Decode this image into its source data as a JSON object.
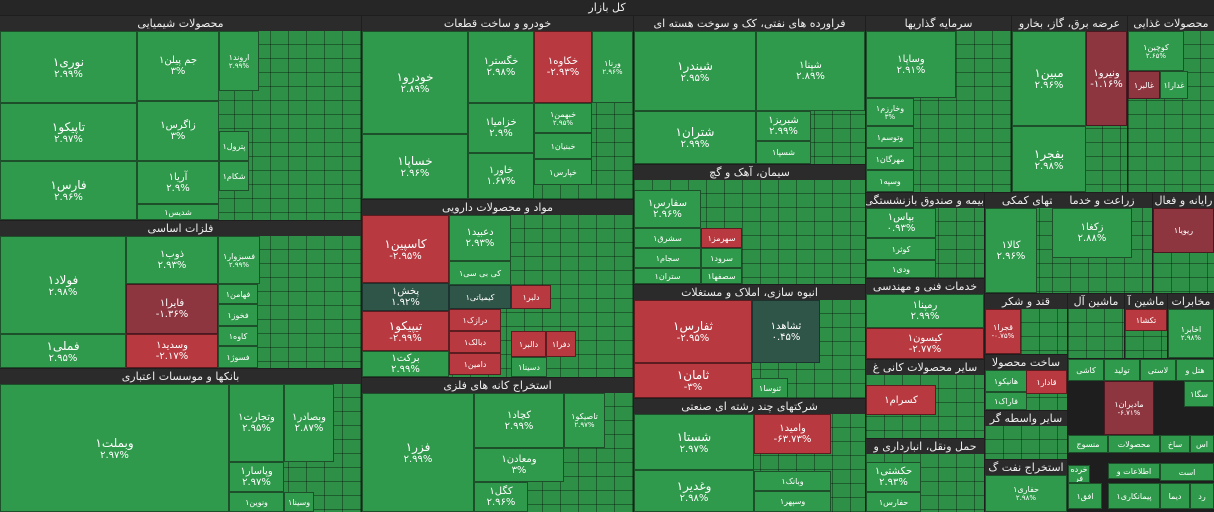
{
  "title": "کل بازار",
  "sectors": {
    "chem": "محصولات شیمیایی",
    "metals": "فلزات اساسی",
    "banks": "بانکها و موسسات اعتباری",
    "auto": "خودرو و ساخت قطعات",
    "pharma": "مواد و محصولات دارویی",
    "mining": "استخراج کانه های فلزی",
    "oil": "فراورده های نفتی، کک و سوخت هسته ای",
    "cement": "سیمان، آهک و گچ",
    "realestate": "انبوه سازی، املاک و مستغلات",
    "multi": "شرکتهای چند رشته ای صنعتی",
    "invest": "سرمایه گذاریها",
    "utility": "عرضه برق، گاز، بخارو",
    "food": "محصولات غذایی",
    "insurance": "بیمه و صندوق بازنشستگی",
    "tech": "خدمات فنی و مهندسی",
    "support": "فعالیتهای کمکی",
    "agri": "زراعت و خدما",
    "computer": "رایانه و فعال",
    "sugar": "قند و شکر",
    "machine": "ماشین آل",
    "machine2": "ماشین آ",
    "telecom": "مخابرات",
    "nonmetal": "سایر محصولات کانی غ",
    "building": "ساخت محصولا",
    "other_mid": "سایر واسطه گر",
    "transport": "حمل ونقل، انبارداری و",
    "oil_ext": "استخراج نفت گ",
    "retail": "خرده فر",
    "pack": "محصولات",
    "info": "اطلاعات و",
    "textile": "منسوج",
    "tile_s": "کاشی",
    "wood": "لاستی",
    "prod": "تولید",
    "hotel": "هتل و",
    "ass": "اس",
    "mech": "ساخ",
    "ast": "است"
  },
  "tiles": {
    "nori": {
      "name": "نوری۱",
      "change": "۲.۹۹%"
    },
    "tapiko": {
      "name": "تاپیکو۱",
      "change": "۲.۹۷%"
    },
    "fars": {
      "name": "فارس۱",
      "change": "۲.۹۶%"
    },
    "jam": {
      "name": "جم پیلن۱",
      "change": "۳%"
    },
    "zagros": {
      "name": "زاگرس۱",
      "change": "۳%"
    },
    "arya": {
      "name": "آریا۱",
      "change": "۲.۹%"
    },
    "arvand": {
      "name": "اروند۱",
      "change": "۲.۹۹%"
    },
    "shediss": {
      "name": "شدیس۱"
    },
    "petrol": {
      "name": "پترول۱"
    },
    "shekam": {
      "name": "شکام۱"
    },
    "foolad": {
      "name": "فولاد۱",
      "change": "۲.۹۸%"
    },
    "fameli": {
      "name": "فملی۱",
      "change": "۲.۹۵%"
    },
    "zob": {
      "name": "ذوب۱",
      "change": "۲.۹۳%"
    },
    "faira": {
      "name": "فایرا۱",
      "change": "-۱.۳۶%"
    },
    "vasdid": {
      "name": "وسدید۱",
      "change": "-۲.۱۷%"
    },
    "fesazvar": {
      "name": "فسبزوار۱",
      "change": "۲.۹۹%"
    },
    "fakhooz": {
      "name": "فخوز۱"
    },
    "fahaman": {
      "name": "فهامن۱"
    },
    "kave": {
      "name": "کاوه۱"
    },
    "fasooz": {
      "name": "فسوژ۱"
    },
    "vbemellat": {
      "name": "وبملت۱",
      "change": "۲.۹۷%"
    },
    "vtejarat": {
      "name": "وتجارت۱",
      "change": "۲.۹۵%"
    },
    "vbsader": {
      "name": "وبصادر۱",
      "change": "۲.۸۷%"
    },
    "vpasar": {
      "name": "وپاسار۱",
      "change": "۲.۹۷%"
    },
    "vnovin": {
      "name": "ونوین۱"
    },
    "vsina": {
      "name": "وسینا۱"
    },
    "khodro": {
      "name": "خودرو۱",
      "change": "۲.۸۹%"
    },
    "khasapa": {
      "name": "خساپا۱",
      "change": "۲.۹۶%"
    },
    "khegostar": {
      "name": "خگستر۱",
      "change": "۲.۹۸%"
    },
    "khazamia": {
      "name": "خزامیا۱",
      "change": "۲.۹%"
    },
    "khavar": {
      "name": "خاور۱",
      "change": "۱.۶۷%"
    },
    "khakaveh": {
      "name": "خکاوه۱",
      "change": "-۲.۹۳%"
    },
    "vrena": {
      "name": "ورنا۱",
      "change": "۲.۹۶%"
    },
    "khbahman": {
      "name": "خبهمن۱",
      "change": "۲.۹۵%"
    },
    "khbanian": {
      "name": "خبنیان۱"
    },
    "khpars": {
      "name": "خپارس۱"
    },
    "caspian": {
      "name": "کاسپین۱",
      "change": "-۲.۹۵%"
    },
    "pakhsh": {
      "name": "پخش۱",
      "change": "۱.۹۲%"
    },
    "tipiko": {
      "name": "تیپیکو۱",
      "change": "-۲.۹۹%"
    },
    "barkat": {
      "name": "برکت۱",
      "change": "۲.۹۹%"
    },
    "dabid": {
      "name": "دعبید۱",
      "change": "۲.۹۳%"
    },
    "kibisi": {
      "name": "کی بی سی۱"
    },
    "kimiday": {
      "name": "کیمیاتی۱"
    },
    "dalber": {
      "name": "دلبر۱"
    },
    "daravar": {
      "name": "درازک۱"
    },
    "dabalk": {
      "name": "دبالک۱"
    },
    "damin": {
      "name": "دامین۱"
    },
    "dalar": {
      "name": "دالبر۱"
    },
    "dafara": {
      "name": "دفرا۱"
    },
    "dasina": {
      "name": "دسینا۱"
    },
    "fazar": {
      "name": "فزر۱",
      "change": "۲.۹۹%"
    },
    "kechad": {
      "name": "کچاد۱",
      "change": "۲.۹۹%"
    },
    "vemadan": {
      "name": "ومعادن۱",
      "change": "۳%"
    },
    "kegol": {
      "name": "کگل۱",
      "change": "۲.۹۶%"
    },
    "tapiko_m": {
      "name": "تاصیکو۱",
      "change": "۲.۹۷%"
    },
    "shebandar": {
      "name": "شبندر۱",
      "change": "۲.۹۵%"
    },
    "shetran": {
      "name": "شتران۱",
      "change": "۲.۹۹%"
    },
    "shepna": {
      "name": "شپنا۱",
      "change": "۲.۸۹%"
    },
    "shebriz": {
      "name": "شبریز۱",
      "change": "۲.۹۹%"
    },
    "shespa": {
      "name": "شسپا۱"
    },
    "safars": {
      "name": "سفارس۱",
      "change": "۲.۹۶%"
    },
    "sesharg": {
      "name": "سشرق۱"
    },
    "sejam": {
      "name": "سجام۱"
    },
    "setran": {
      "name": "ستران۱"
    },
    "sehormoz": {
      "name": "سهرمز۱"
    },
    "serood": {
      "name": "سرود۱"
    },
    "sesfaha": {
      "name": "سصفها۱"
    },
    "tafars": {
      "name": "ثفارس۱",
      "change": "-۲.۹۵%"
    },
    "saman": {
      "name": "ثامان۱",
      "change": "-۳%"
    },
    "shahed": {
      "name": "ثشاهد۱",
      "change": "۰.۴۵%"
    },
    "sanosa": {
      "name": "ثنوسا۱"
    },
    "shasta": {
      "name": "شستا۱",
      "change": "۲.۹۷%"
    },
    "vghadir": {
      "name": "وغدیر۱",
      "change": "۲.۹۸%"
    },
    "vomid": {
      "name": "وامید۱",
      "change": "-۶۳.۷۳%"
    },
    "vbank": {
      "name": "وبانک۱"
    },
    "vsepahr": {
      "name": "وسپهر۱"
    },
    "vsapa": {
      "name": "وساپا۱",
      "change": "۲.۹۱%"
    },
    "vkharazm": {
      "name": "وخارزم۱",
      "change": "۳%"
    },
    "vtoosm": {
      "name": "وتوسم۱"
    },
    "mehrgan": {
      "name": "مهرگان۱"
    },
    "vsepe": {
      "name": "وسپه۱"
    },
    "mobin": {
      "name": "مبین۱",
      "change": "۲.۹۶%"
    },
    "vniro": {
      "name": "ونیرو۱",
      "change": "-۱.۱۶%"
    },
    "bafjar": {
      "name": "بفجر۱",
      "change": "۲.۹۸%"
    },
    "kouchin": {
      "name": "کوچین۱",
      "change": "۲.۶۵%"
    },
    "ghalbor": {
      "name": "غالبر۱"
    },
    "ghadara": {
      "name": "غدارا۱"
    },
    "bayas": {
      "name": "بپاس۱",
      "change": "۰.۹۳%"
    },
    "kowsar": {
      "name": "کوثر۱"
    },
    "vadi": {
      "name": "ودی۱"
    },
    "rampna": {
      "name": "رمپنا۱",
      "change": "۲.۹۹%"
    },
    "kisan": {
      "name": "کیسون۱",
      "change": "-۲.۷۷%"
    },
    "kala": {
      "name": "کالا۱",
      "change": "۲.۹۶%"
    },
    "zagka": {
      "name": "زکغا۱",
      "change": "۲.۸۸%"
    },
    "robia": {
      "name": "ریویا۱"
    },
    "ghajra": {
      "name": "قجرا۱",
      "change": "-۰.۷۵%"
    },
    "tekasha": {
      "name": "تکشا۱"
    },
    "akhaber": {
      "name": "اخابر۱",
      "change": "۲.۹۸%"
    },
    "kesram": {
      "name": "کسرام۱"
    },
    "hanikou": {
      "name": "هانیکو۱"
    },
    "kadar": {
      "name": "قادار۱"
    },
    "faraka": {
      "name": "فاراک۱"
    },
    "madaran": {
      "name": "مادیران۱",
      "change": "-۶.۷۱%"
    },
    "hekshti": {
      "name": "حکشتی۱",
      "change": "۲.۹۳%"
    },
    "hafaras": {
      "name": "حفارس۱"
    },
    "hafari": {
      "name": "حفاری۱",
      "change": "۲.۹۸%"
    },
    "afagh": {
      "name": "افق۱"
    },
    "peymankari": {
      "name": "پیمانکاری۱"
    },
    "sega": {
      "name": "سگا۱"
    },
    "dima": {
      "name": "دیما"
    },
    "rad": {
      "name": "رد"
    }
  }
}
